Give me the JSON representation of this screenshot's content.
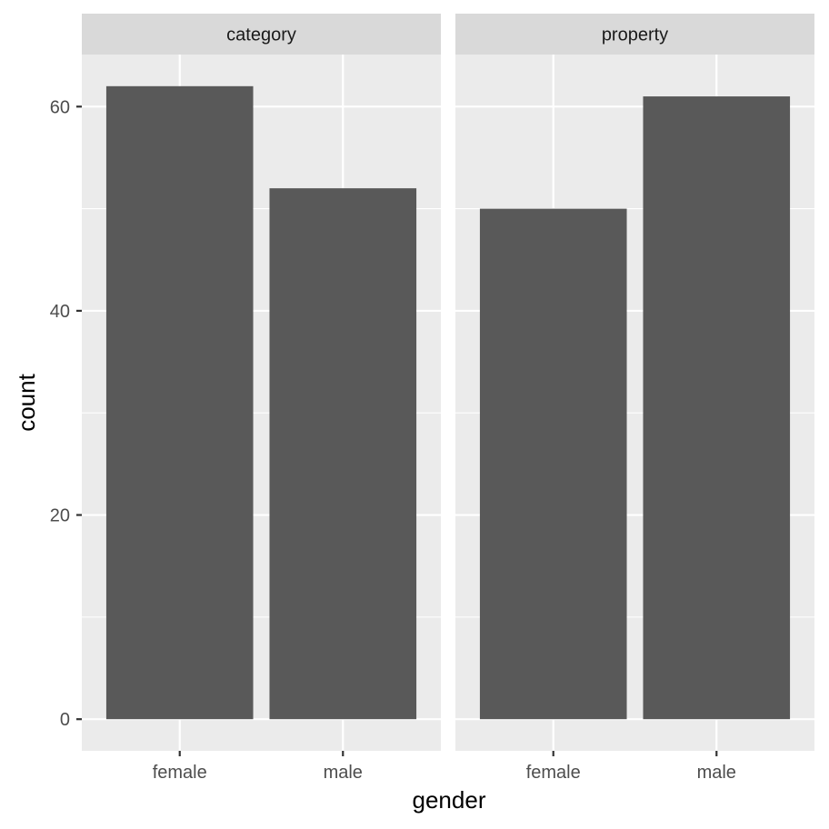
{
  "chart_data": {
    "type": "bar",
    "xlabel": "gender",
    "ylabel": "count",
    "ylim": [
      -3.1,
      65.1
    ],
    "y_ticks": [
      0,
      20,
      40,
      60
    ],
    "y_tick_labels": [
      "0",
      "20",
      "40",
      "60"
    ],
    "grid": true,
    "categories": [
      "female",
      "male"
    ],
    "panels": [
      {
        "label": "category",
        "categories": [
          "female",
          "male"
        ],
        "values": [
          62,
          52
        ]
      },
      {
        "label": "property",
        "categories": [
          "female",
          "male"
        ],
        "values": [
          50,
          61
        ]
      }
    ],
    "colors": {
      "panel_bg": "#ebebeb",
      "strip_bg": "#d9d9d9",
      "grid": "#ffffff",
      "bar": "#595959",
      "tick": "#333333"
    }
  }
}
